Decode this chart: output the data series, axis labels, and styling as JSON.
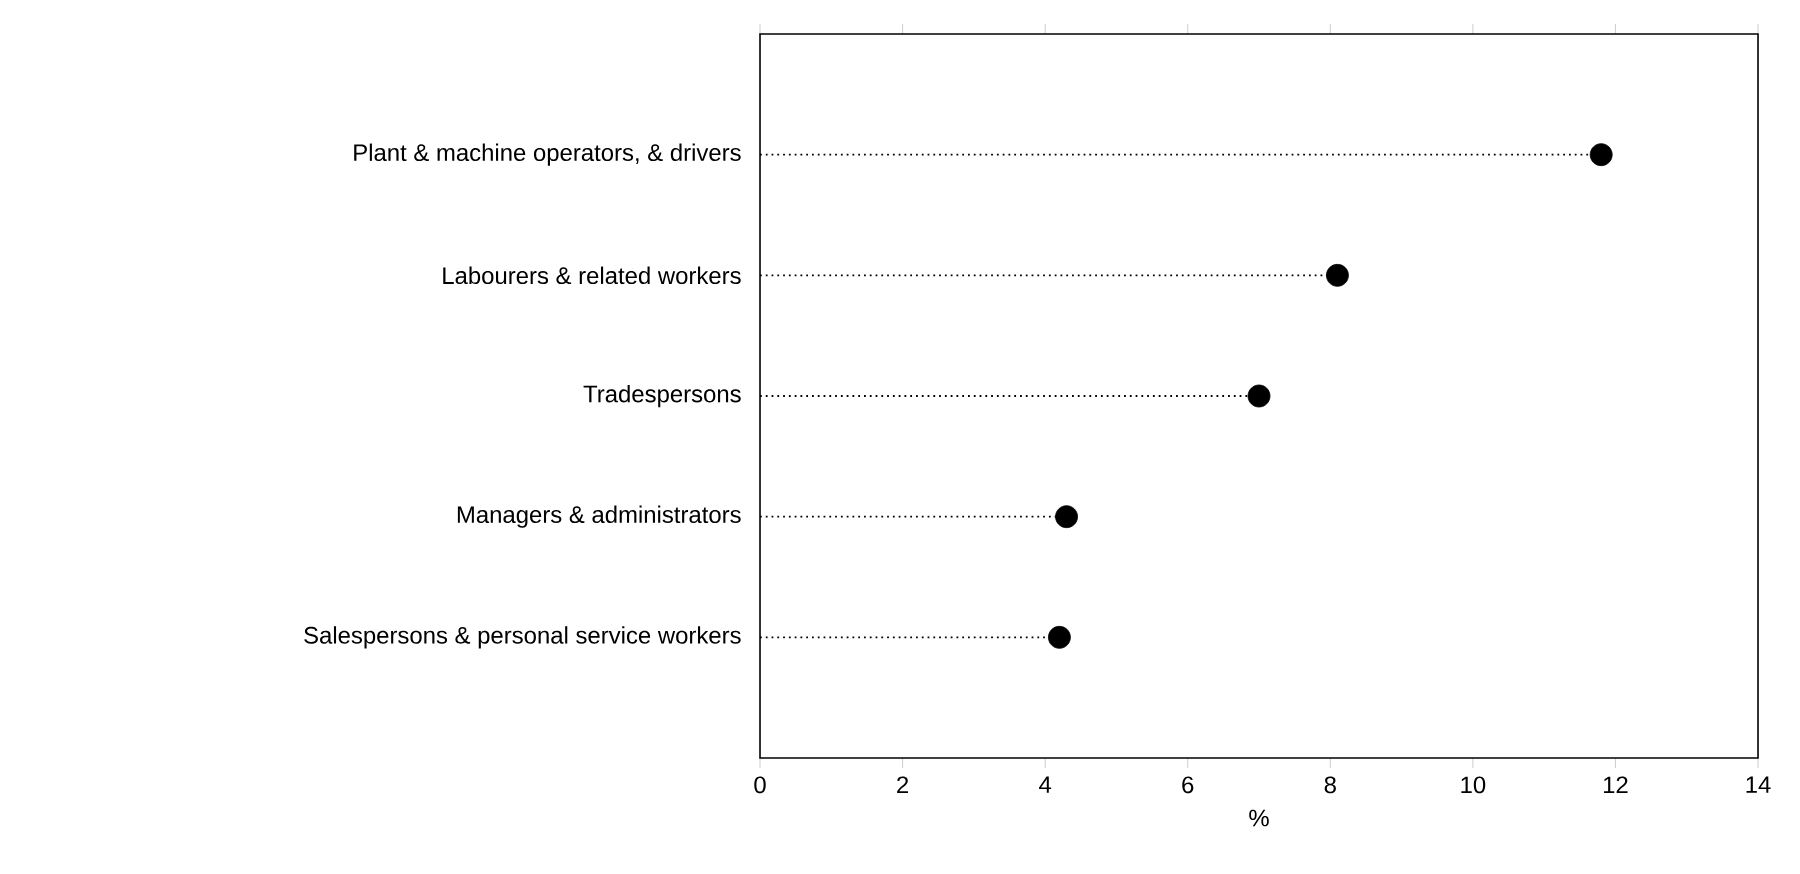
{
  "chart_data": {
    "type": "lollipop",
    "orientation": "horizontal",
    "xlabel": "%",
    "categories": [
      "Plant & machine operators, & drivers",
      "Labourers & related workers",
      "Tradespersons",
      "Managers & administrators",
      "Salespersons & personal service workers"
    ],
    "values": [
      11.8,
      8.1,
      7.0,
      4.3,
      4.2
    ],
    "color": "#000000",
    "marker": "circle",
    "line_style": "dotted",
    "xlim": [
      0,
      14
    ],
    "xticks": [
      0,
      2,
      4,
      6,
      8,
      10,
      12,
      14
    ],
    "grid": false
  }
}
